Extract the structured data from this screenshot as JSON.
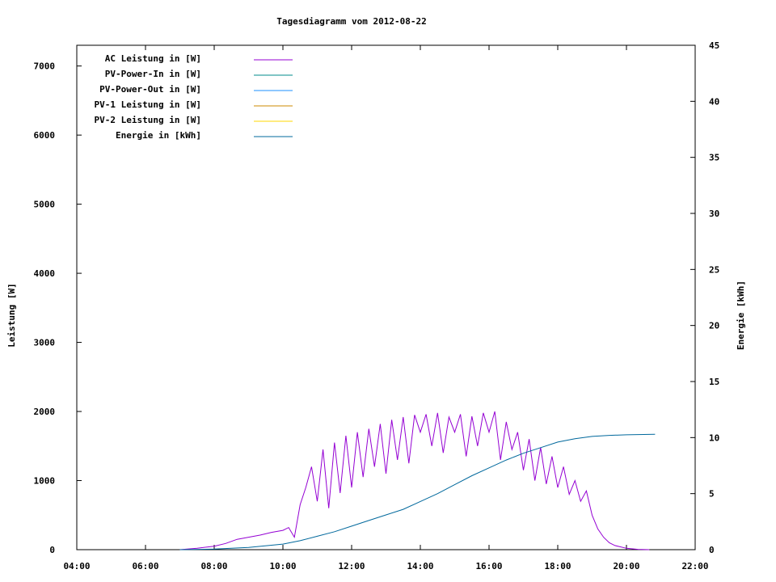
{
  "chart_data": {
    "type": "line",
    "title": "Tagesdiagramm vom 2012-08-22",
    "ylabel": "Leistung [W]",
    "y2label": "Energie [kWh]",
    "xlim": [
      "04:00",
      "22:00"
    ],
    "ylim": [
      0,
      7300
    ],
    "y2lim": [
      0,
      45
    ],
    "x_ticks": [
      "04:00",
      "06:00",
      "08:00",
      "10:00",
      "12:00",
      "14:00",
      "16:00",
      "18:00",
      "20:00",
      "22:00"
    ],
    "y_ticks": [
      "0",
      "1000",
      "2000",
      "3000",
      "4000",
      "5000",
      "6000",
      "7000"
    ],
    "y2_ticks": [
      "0",
      "5",
      "10",
      "15",
      "20",
      "25",
      "30",
      "35",
      "40",
      "45"
    ],
    "grid": false,
    "legend_position": "top-left",
    "series": [
      {
        "name": "AC Leistung in [W]",
        "color": "#9400d3",
        "axis": "left",
        "x": [
          "07:00",
          "07:30",
          "08:00",
          "08:20",
          "08:40",
          "09:00",
          "09:20",
          "09:40",
          "10:00",
          "10:10",
          "10:20",
          "10:30",
          "10:40",
          "10:50",
          "11:00",
          "11:10",
          "11:20",
          "11:30",
          "11:40",
          "11:50",
          "12:00",
          "12:10",
          "12:20",
          "12:30",
          "12:40",
          "12:50",
          "13:00",
          "13:10",
          "13:20",
          "13:30",
          "13:40",
          "13:50",
          "14:00",
          "14:10",
          "14:20",
          "14:30",
          "14:40",
          "14:50",
          "15:00",
          "15:10",
          "15:20",
          "15:30",
          "15:40",
          "15:50",
          "16:00",
          "16:10",
          "16:20",
          "16:30",
          "16:40",
          "16:50",
          "17:00",
          "17:10",
          "17:20",
          "17:30",
          "17:40",
          "17:50",
          "18:00",
          "18:10",
          "18:20",
          "18:30",
          "18:40",
          "18:50",
          "19:00",
          "19:10",
          "19:20",
          "19:30",
          "19:40",
          "20:00",
          "20:20",
          "20:40"
        ],
        "values": [
          0,
          20,
          50,
          90,
          150,
          180,
          210,
          250,
          280,
          320,
          180,
          650,
          900,
          1200,
          700,
          1450,
          600,
          1550,
          820,
          1650,
          900,
          1700,
          1050,
          1750,
          1200,
          1820,
          1100,
          1880,
          1300,
          1920,
          1250,
          1950,
          1700,
          1960,
          1500,
          1980,
          1400,
          1920,
          1700,
          1960,
          1350,
          1930,
          1500,
          1980,
          1700,
          2000,
          1300,
          1850,
          1450,
          1700,
          1150,
          1600,
          1000,
          1480,
          950,
          1350,
          900,
          1200,
          800,
          1000,
          700,
          850,
          500,
          300,
          180,
          100,
          60,
          20,
          5,
          0
        ]
      },
      {
        "name": "PV-Power-In in [W]",
        "color": "#008b8b",
        "axis": "left",
        "x": [],
        "values": []
      },
      {
        "name": "PV-Power-Out in [W]",
        "color": "#1e90ff",
        "axis": "left",
        "x": [],
        "values": []
      },
      {
        "name": "PV-1 Leistung in [W]",
        "color": "#cc8800",
        "axis": "left",
        "x": [],
        "values": []
      },
      {
        "name": "PV-2 Leistung in [W]",
        "color": "#ffd700",
        "axis": "left",
        "x": [],
        "values": []
      },
      {
        "name": "Energie in [kWh]",
        "color": "#00689c",
        "axis": "right",
        "x": [
          "07:00",
          "08:00",
          "09:00",
          "10:00",
          "10:30",
          "11:00",
          "11:30",
          "12:00",
          "12:30",
          "13:00",
          "13:30",
          "14:00",
          "14:30",
          "15:00",
          "15:30",
          "16:00",
          "16:30",
          "17:00",
          "17:30",
          "18:00",
          "18:30",
          "19:00",
          "19:30",
          "20:00",
          "20:30",
          "20:50"
        ],
        "values": [
          0,
          0.05,
          0.2,
          0.5,
          0.8,
          1.2,
          1.6,
          2.1,
          2.6,
          3.1,
          3.6,
          4.3,
          5.0,
          5.8,
          6.6,
          7.3,
          8.0,
          8.6,
          9.1,
          9.6,
          9.9,
          10.1,
          10.2,
          10.25,
          10.28,
          10.3
        ]
      }
    ]
  }
}
